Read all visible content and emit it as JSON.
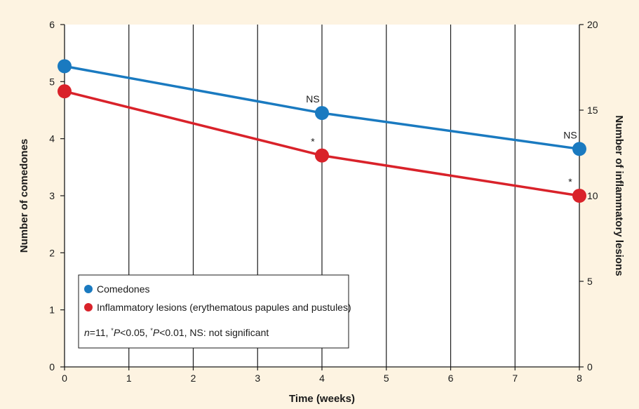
{
  "chart_data": {
    "type": "line",
    "x": [
      0,
      4,
      8
    ],
    "xticks": [
      0,
      1,
      2,
      3,
      4,
      5,
      6,
      7,
      8
    ],
    "xlabel": "Time (weeks)",
    "xlim": [
      0,
      8
    ],
    "ylabel_left": "Number of comedones",
    "ylim_left": [
      0,
      6
    ],
    "yticks_left": [
      0,
      1,
      2,
      3,
      4,
      5,
      6
    ],
    "ylabel_right": "Number of inflammatory lesions",
    "ylim_right": [
      0,
      20
    ],
    "yticks_right": [
      0,
      5,
      10,
      15,
      20
    ],
    "grid": "vertical",
    "series": [
      {
        "name": "Comedones",
        "axis": "left",
        "color": "#1a7ac0",
        "values": [
          5.27,
          4.45,
          3.82
        ],
        "annotations": [
          "",
          "NS",
          "NS"
        ]
      },
      {
        "name": "Inflammatory lesions (erythematous papules and pustules)",
        "axis": "right",
        "color": "#d9222a",
        "values": [
          16.1,
          12.35,
          10.0
        ],
        "annotations": [
          "",
          "*",
          "*"
        ]
      }
    ],
    "legend": {
      "placement": "lower-left",
      "note": {
        "n_var": "n",
        "n_rest": "=11, ",
        "star1": "*",
        "p1_var": "P",
        "p1_rest": "<0.05, ",
        "star2": "*",
        "p2_var": "P",
        "p2_rest": "<0.01, NS: not significant"
      }
    }
  }
}
